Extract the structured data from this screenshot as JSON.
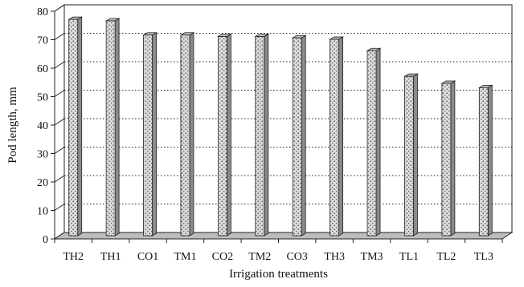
{
  "chart_data": {
    "type": "bar",
    "xlabel": "Irrigation treatments",
    "ylabel": "Pod length, mm",
    "ylim": [
      0,
      80
    ],
    "yticks": [
      0,
      10,
      20,
      30,
      40,
      50,
      60,
      70,
      80
    ],
    "grid": "horizontal dotted",
    "legend": "none",
    "categories": [
      "TH2",
      "TH1",
      "CO1",
      "TM1",
      "CO2",
      "TM2",
      "CO3",
      "TH3",
      "TM3",
      "TL1",
      "TL2",
      "TL3"
    ],
    "values": [
      76,
      75.5,
      70.5,
      70.5,
      70,
      70,
      69.5,
      69,
      65,
      56,
      53.5,
      52
    ],
    "colors": {
      "bar_face": "#d2d2d2",
      "bar_side": "#8a8a8a",
      "bar_top": "#bdbdbd",
      "floor": "#bdbdbd",
      "grid": "#222222"
    }
  }
}
